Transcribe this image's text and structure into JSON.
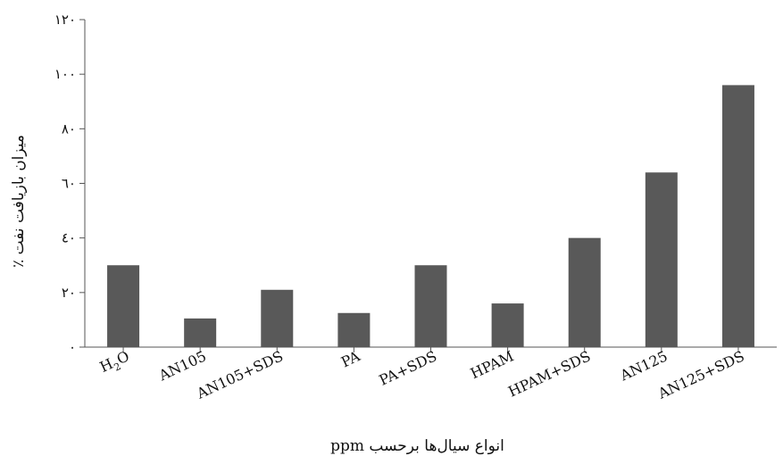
{
  "chart_data": {
    "type": "bar",
    "categories": [
      "H2O",
      "AN105",
      "AN105+SDS",
      "PA",
      "PA+SDS",
      "HPAM",
      "HPAM+SDS",
      "AN125",
      "AN125+SDS"
    ],
    "category_labels": [
      {
        "main": "H",
        "sub": "2",
        "tail": "O"
      },
      {
        "main": "AN105",
        "sub": "",
        "tail": ""
      },
      {
        "main": "AN105+SDS",
        "sub": "",
        "tail": ""
      },
      {
        "main": "PA",
        "sub": "",
        "tail": ""
      },
      {
        "main": "PA+SDS",
        "sub": "",
        "tail": ""
      },
      {
        "main": "HPAM",
        "sub": "",
        "tail": ""
      },
      {
        "main": "HPAM+SDS",
        "sub": "",
        "tail": ""
      },
      {
        "main": "AN125",
        "sub": "",
        "tail": ""
      },
      {
        "main": "AN125+SDS",
        "sub": "",
        "tail": ""
      }
    ],
    "values": [
      30,
      10.5,
      21,
      12.5,
      30,
      16,
      40,
      64,
      96
    ],
    "ylim": [
      0,
      120
    ],
    "yticks": [
      0,
      20,
      40,
      60,
      80,
      100,
      120
    ],
    "ytick_labels": [
      "٠",
      "٢٠",
      "٤٠",
      "٦٠",
      "٨٠",
      "١٠٠",
      "١٢٠"
    ],
    "xlabel": "انواع سیال‌ها برحسب ppm",
    "ylabel": "میزان بازیافت نفت ٪",
    "bar_color": "#595959",
    "grid": false,
    "legend": "none"
  }
}
